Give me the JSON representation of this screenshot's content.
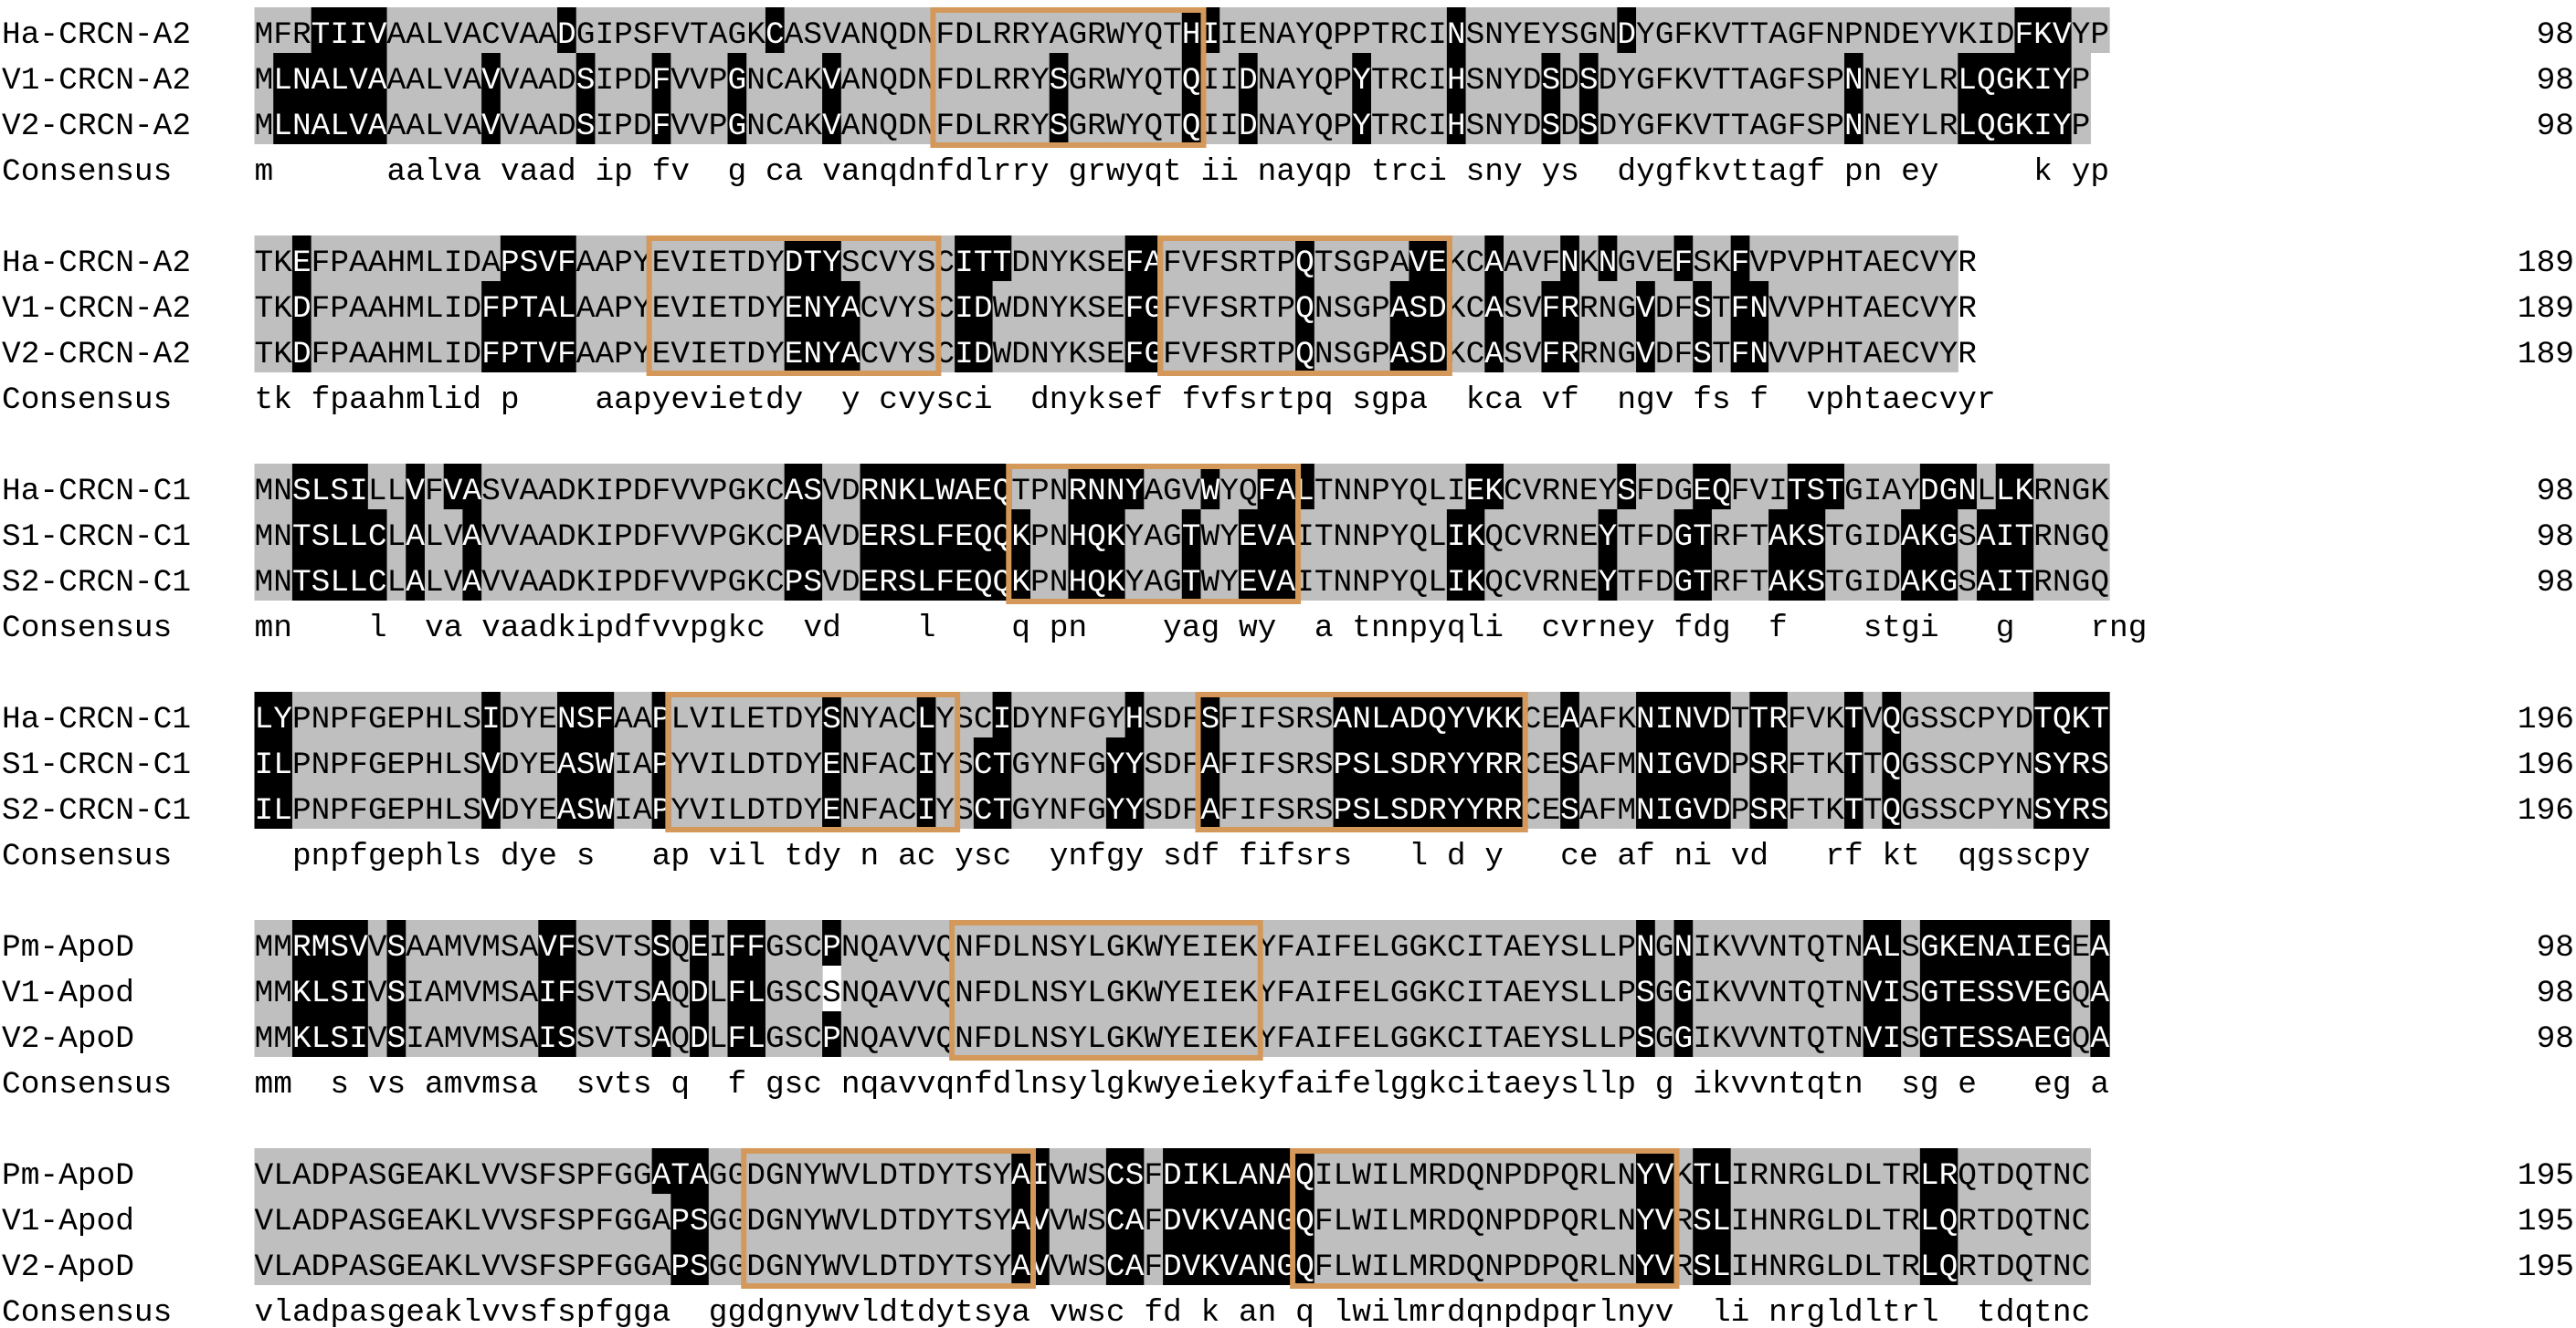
{
  "colors": {
    "identical": "#000000",
    "similar": "#bfbfbf",
    "box": "#d4995a"
  },
  "blocks": [
    {
      "rows": [
        {
          "name": "Ha-CRCN-A2",
          "seq": "MFRTIIVAALVACVAADGIPSFVTAGKCASVANQDNFDLRRYAGRWYQTHIIENAYQPPTRCINSNYEYSGNDYGFKVTTAGFNPNDEYVKIDFKVYP",
          "num": "98",
          "shade": "GGGBBBBGGGGGGGGGBGGGGGGGGGGBGGGGGGGGGGGGGGGGGGGGGBBGGGGGGGGGGGGBGGGGGGGGBGGGGGGGGGGGGGGGGGGGGBBBGG"
        },
        {
          "name": "V1-CRCN-A2",
          "seq": "MLNALVAAALVAVVAADSIPDFVVPGNCAKVANQDNFDLRRYSGRWYQTQIIDNAYQPYTRCIHSNYDSDSDYGFKVTTAGFSPNNEYLRLQGKIYP",
          "num": "98",
          "shade": "GBBBBBBGGGGGBGGGGBGGGBGGGBGGGGBGGGGGGGGGGGBGGGGGGBGGBGGGGGBGGGGBGGGGBGBGGGGGGGGGGGGGBGGGGGBBBBBBGG"
        },
        {
          "name": "V2-CRCN-A2",
          "seq": "MLNALVAAALVAVVAADSIPDFVVPGNCAKVANQDNFDLRRYSGRWYQTQIIDNAYQPYTRCIHSNYDSDSDYGFKVTTAGFSPNNEYLRLQGKIYP",
          "num": "98",
          "shade": "GBBBBBBGGGGGBGGGGBGGGBGGGBGGGGBGGGGGGGGGGGBGGGGGGBGGBGGGGGBGGGGBGGGGBGBGGGGGGGGGGGGGBGGGGGBBBBBBGG"
        },
        {
          "name": "Consensus",
          "seq": "m      aalva vaad ip fv  g ca vanqdnfdlrry grwyqt ii nayqp trci sny ys  dygfkvttagf pn ey     k yp",
          "consensus": true
        }
      ],
      "boxes": [
        [
          36,
          49
        ]
      ]
    },
    {
      "rows": [
        {
          "name": "Ha-CRCN-A2",
          "seq": "TKEFPAAHMLIDAPSVFAAPYEVIETDYDTYSCVYSCITTDNYKSEFAFVFSRTPQTSGPAVEKCAAVFNKNGVEFSKFVPVPHTAECVYR",
          "num": "189",
          "shade": "GGBGGGGGGGGGGBBBBGGGGGGGGGGGBBBGGGGGGBBBGGGGGGBBGGGGGGGBGGGGGBBGGBGGGBGBGGGBGGBGGGGGGGGGGG"
        },
        {
          "name": "V1-CRCN-A2",
          "seq": "TKDFPAAHMLIDFPTALAAPYEVIETDYENYACVYSCIDWDNYKSEFGFVFSRTPQNSGPASDKCASVFRRNGVDFSTFNVVPHTAECVYR",
          "num": "189",
          "shade": "GGBGGGGGGGGGBBBBBGGGGGGGGGGGBBBBGGGGGBBGGGGGGGBBGGGGGGGBGGGGBBBGGBGGBBGGGBGGBGBBGGGGGGGGGG"
        },
        {
          "name": "V2-CRCN-A2",
          "seq": "TKDFPAAHMLIDFPTVFAAPYEVIETDYENYACVYSCIDWDNYKSEFGFVFSRTPQNSGPASDKCASVFRRNGVDFSTFNVVPHTAECVYR",
          "num": "189",
          "shade": "GGBGGGGGGGGGBBBBBGGGGGGGGGGGBBBBGGGGGBBGGGGGGGBBGGGGGGGBGGGGBBBGGBGGBBGGGBGGBGBBGGGGGGGGGG"
        },
        {
          "name": "Consensus",
          "seq": "tk fpaahmlid p    aapyevietdy  y cvysci  dnyksef fvfsrtpq sgpa  kca vf  ngv fs f  vphtaecvyr",
          "consensus": true
        }
      ],
      "boxes": [
        [
          21,
          35
        ],
        [
          48,
          62
        ]
      ]
    },
    {
      "rows": [
        {
          "name": "Ha-CRCN-C1",
          "seq": "MNSLSILLVFVASVAADKIPDFVVPGKCASVDRNKLWAEQTPNRNNYAGVWYQFALTNNPYQLIEKCVRNEYSFDGEQFVITSTGIAYDGNLLKRNGK",
          "num": "98",
          "shade": "GGBBBBGGBGBBGGGGGGGGGGGGGGGGBBGGBBBBBBBBGGGBBBBGGGBGGBBBGGGGGGGGBBGGGGGGBGGGBBGGGBBBGGGGBBBGBBGGGG"
        },
        {
          "name": "S1-CRCN-C1",
          "seq": "MNTSLLCLALVAVVAADKIPDFVVPGKCPAVDERSLFEQQKPNHQKYAGTWYEVAITNNPYQLIKQCVRNEYTFDGTRFTAKSTGIDAKGSAITRNGQ",
          "num": "98",
          "shade": "GGBBBBBGBGGBGGGGGGGGGGGGGGGGBBGGBBBBBBBBBGGBBBGGGBGGBBBGGGGGGGGBBGGGGGGBGGGBBGGGBBBGGGGBBBGBBBGGGGB"
        },
        {
          "name": "S2-CRCN-C1",
          "seq": "MNTSLLCLALVAVVAADKIPDFVVPGKCPSVDERSLFEQQKPNHQKYAGTWYEVAITNNPYQLIKQCVRNEYTFDGTRFTAKSTGIDAKGSAITRNGQ",
          "num": "98",
          "shade": "GGBBBBBGBGGBGGGGGGGGGGGGGGGGBBGGBBBBBBBBBGGBBBGGGBGGBBBGGGGGGGGBBGGGGGGBGGGBBGGGBBBGGGGBBBGBBBGGGGB"
        },
        {
          "name": "Consensus",
          "seq": "mn    l  va vaadkipdfvvpgkc  vd    l    q pn    yag wy  a tnnpyqli  cvrney fdg  f    stgi   g    rng",
          "consensus": true
        }
      ],
      "boxes": [
        [
          40,
          54
        ]
      ]
    },
    {
      "rows": [
        {
          "name": "Ha-CRCN-C1",
          "seq": "LYPNPFGEPHLSIDYENSFAAPLVILETDYSNYACLYSCIDYNFGYHSDFSFIFSRSANLADQYVKKCEAAFKNINVDTTRFVKTVQGSSCPYDTQKT",
          "num": "196",
          "shade": "BBGGGGGGGGGGBGGGBBBGGBGGGGGGGGBGGGGBGGGBGGGGGGBGGGBGGGGGGBBBBBBBBBBGGBGGGBBBBBGBBGGGBGBGGGGGGGBBBBB"
        },
        {
          "name": "S1-CRCN-C1",
          "seq": "ILPNPFGEPHLSVDYEASWIAPYVILDTDYENFACIYSCTGYNFGYYSDFAFIFSRSPSLSDRYYRRCESAFMNIGVDPSRFTKTTQGSSCPYNSYRS",
          "num": "196",
          "shade": "BBGGGGGGGGGGBGGGBBBGGBGGGGGGGGBGGGGBGGBBGGGGGBBGGGBGGGGGGBBBBBBBBBBGGBGGGBBBBBGBBGGGBGBGGGGGGGBBBBB"
        },
        {
          "name": "S2-CRCN-C1",
          "seq": "ILPNPFGEPHLSVDYEASWIAPYVILDTDYENFACIYSCTGYNFGYYSDFAFIFSRSPSLSDRYYRRCESAFMNIGVDPSRFTKTTQGSSCPYNSYRS",
          "num": "196",
          "shade": "BBGGGGGGGGGGBGGGBBBGGBGGGGGGGGBGGGGBGGBBGGGGGBBGGGBGGGGGGBBBBBBBBBBGGBGGGBBBBBGBBGGGBGBGGGGGGGBBBBB"
        },
        {
          "name": "Consensus",
          "seq": "  pnpfgephls dye s   ap vil tdy n ac ysc  ynfgy sdf fifsrs   l d y   ce af ni vd   rf kt  qgsscpy",
          "consensus": true
        }
      ],
      "boxes": [
        [
          22,
          36
        ],
        [
          50,
          66
        ]
      ]
    },
    {
      "rows": [
        {
          "name": "Pm-ApoD",
          "seq": "MMRMSVVSAAMVMSAVFSVTSSQEIFFGSCPNQAVVQNFDLNSYLGKWYEIEKYFAIFELGGKCITAEYSLLPNGNIKVVNTQTNALSGKENAIEGEA",
          "num": "98",
          "shade": "GGBBBBGBGGGGGGGBBGGGGBGBGBBGGGBGGGGGGGGGGGGGGGGGGGGGGGGGGGGGGGGGGGGGGGGGGBGBGGGGGGGGGBBGBBBBBBBBGBG"
        },
        {
          "name": "V1-Apod",
          "seq": "MMKLSIVSIAMVMSAIFSVTSAQDLFLGSCSNQAVVQNFDLNSYLGKWYEIEKYFAIFELGGKCITAEYSLLPSGGIKVVNTQTNVISGTESSVEGQA",
          "num": "98",
          "shade": "GGBBBBGBGGGGGGGBBGGGGBGBGBBGGGWGGGGGGGGGGGGGGGGGGGGGGGGGGGGGGGGGGGGGGGGGGBGBGGGGGGGGGBBGBBBBBBBBGBG"
        },
        {
          "name": "V2-ApoD",
          "seq": "MMKLSIVSIAMVMSAISSVTSAQDLFLGSCPNQAVVQNFDLNSYLGKWYEIEKYFAIFELGGKCITAEYSLLPSGGIKVVNTQTNVISGTESSAEGQA",
          "num": "98",
          "shade": "GGBBBBGBGGGGGGGBBGGGGBGBGBBGGGBGGGGGGGGGGGGGGGGGGGGGGGGGGGGGGGGGGGGGGGGGGBGBGGGGGGGGGBBGBBBBBBBBGBG"
        },
        {
          "name": "Consensus",
          "seq": "mm  s vs amvmsa  svts q  f gsc nqavvqnfdlnsylgkwyeiekyfaifelggkcitaeysllp g ikvvntqtn  sg e   eg a",
          "consensus": true
        }
      ],
      "boxes": [
        [
          37,
          52
        ]
      ]
    },
    {
      "rows": [
        {
          "name": "Pm-ApoD",
          "seq": "VLADPASGEAKLVVSFSPFGGATAGGDGNYWVLDTDYTSYAIVWSCSFDIKLANAQILWILMRDQNPDPQRLNYVKTLIRNRGLDLTRLRQTDQTNC",
          "num": "195",
          "shade": "GGGGGGGGGGGGGGGGGGGGGBBBGGGGGGGGGGGGGGGGBBGGGBBGBBBBBBBBGGGGGGGGGGGGGGGGGBBGBBGGGGGGGGGGBBGGGGGGG"
        },
        {
          "name": "V1-Apod",
          "seq": "VLADPASGEAKLVVSFSPFGGAPSGGDGNYWVLDTDYTSYAVVWSCAFDVKVANGQFLWILMRDQNPDPQRLNYVRSLIHNRGLDLTRLQRTDQTNC",
          "num": "195",
          "shade": "GGGGGGGGGGGGGGGGGGGGGGBBGGGGGGGGGGGGGGGGBBGGGBBGBBBBBBBBGGGGGGGGGGGGGGGGGBBGBBGGGGGGGGGGBBGGGGGGG"
        },
        {
          "name": "V2-ApoD",
          "seq": "VLADPASGEAKLVVSFSPFGGAPSGGDGNYWVLDTDYTSYAVVWSCAFDVKVANGQFLWILMRDQNPDPQRLNYVRSLIHNRGLDLTRLQRTDQTNC",
          "num": "195",
          "shade": "GGGGGGGGGGGGGGGGGGGGGGBBGGGGGGGGGGGGGGGGBBGGGBBGBBBBBBBBGGGGGGGGGGGGGGGGGBBGBBGGGGGGGGGGBBGGGGGGG"
        },
        {
          "name": "Consensus",
          "seq": "vladpasgeaklvvsfspfgga  ggdgnywvldtdytsya vwsc fd k an q lwilmrdqnpdpqrlnyv  li nrgldltrl  tdqtnc",
          "consensus": true
        }
      ],
      "boxes": [
        [
          26,
          40
        ],
        [
          55,
          74
        ]
      ]
    }
  ]
}
